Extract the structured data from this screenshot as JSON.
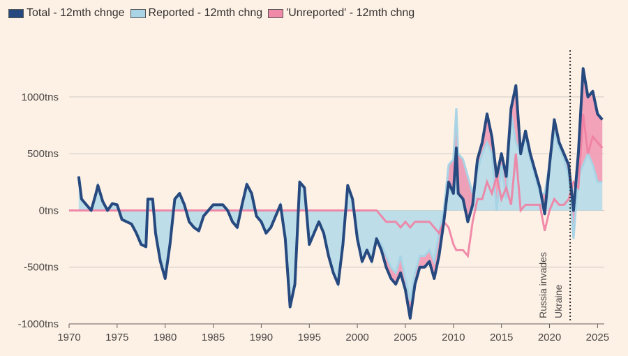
{
  "legend": [
    {
      "label": "Total - 12mth chnge",
      "color": "#26497f"
    },
    {
      "label": "Reported - 12mth chng",
      "color": "#a8d4e6"
    },
    {
      "label": "'Unreported' - 12mth chng",
      "color": "#f08aa8"
    }
  ],
  "chart_data": {
    "type": "area",
    "title": "",
    "xlabel": "",
    "ylabel": "",
    "xlim": [
      1970,
      2025.7
    ],
    "ylim": [
      -1000,
      1350
    ],
    "yticks": [
      -1000,
      -500,
      0,
      500,
      1000
    ],
    "ytick_labels": [
      "-1000tns",
      "-500tns",
      "0tns",
      "500tns",
      "1000tns"
    ],
    "xticks": [
      1970,
      1975,
      1980,
      1985,
      1990,
      1995,
      2000,
      2005,
      2010,
      2015,
      2020,
      2025
    ],
    "xtick_labels": [
      "1970",
      "1975",
      "1980",
      "1985",
      "1990",
      "1995",
      "2000",
      "2005",
      "2010",
      "2015",
      "2020",
      "2025"
    ],
    "grid": "horizontal",
    "legend_position": "top-left",
    "annotation": {
      "label": "Russia invades Ukraine",
      "lines": [
        "Russia invades",
        "Ukraine"
      ],
      "x": 2022.15
    },
    "x": [
      1971,
      1971.3,
      1971.8,
      1972.3,
      1972.8,
      1973,
      1973.5,
      1974,
      1974.5,
      1975,
      1975.5,
      1976,
      1976.5,
      1977,
      1977.5,
      1978,
      1978.2,
      1978.7,
      1979,
      1979.5,
      1980,
      1980.5,
      1981,
      1981.5,
      1982,
      1982.5,
      1983,
      1983.5,
      1984,
      1985,
      1986,
      1986.5,
      1987,
      1987.5,
      1988,
      1988.5,
      1989,
      1989.5,
      1990,
      1990.5,
      1991,
      1991.5,
      1992,
      1992.5,
      1993,
      1993.5,
      1994,
      1994.5,
      1995,
      1995.5,
      1996,
      1996.5,
      1997,
      1997.5,
      1998,
      1998.5,
      1999,
      1999.5,
      2000,
      2000.5,
      2001,
      2001.5,
      2002,
      2002.5,
      2003,
      2003.5,
      2004,
      2004.5,
      2005,
      2005.5,
      2006,
      2006.5,
      2007,
      2007.5,
      2008,
      2008.5,
      2009,
      2009.5,
      2010,
      2010.3,
      2010.5,
      2011,
      2011.5,
      2012,
      2012.5,
      2013,
      2013.5,
      2014,
      2014.5,
      2015,
      2015.5,
      2016,
      2016.5,
      2017,
      2017.5,
      2018,
      2018.5,
      2019,
      2019.5,
      2020,
      2020.5,
      2021,
      2021.5,
      2022,
      2022.5,
      2023,
      2023.5,
      2024,
      2024.5,
      2025,
      2025.5
    ],
    "series": [
      {
        "name": "Total - 12mth chnge",
        "values": [
          300,
          100,
          50,
          0,
          150,
          220,
          80,
          0,
          60,
          50,
          -80,
          -100,
          -120,
          -200,
          -300,
          -320,
          100,
          100,
          -200,
          -450,
          -600,
          -300,
          100,
          150,
          50,
          -100,
          -150,
          -180,
          -50,
          50,
          50,
          0,
          -100,
          -150,
          50,
          230,
          150,
          -50,
          -100,
          -200,
          -150,
          -50,
          50,
          -250,
          -850,
          -650,
          250,
          200,
          -300,
          -200,
          -100,
          -200,
          -400,
          -550,
          -650,
          -300,
          220,
          100,
          -250,
          -450,
          -350,
          -450,
          -250,
          -350,
          -500,
          -600,
          -650,
          -550,
          -700,
          -950,
          -650,
          -500,
          -500,
          -450,
          -600,
          -400,
          -100,
          250,
          150,
          550,
          150,
          100,
          -100,
          50,
          450,
          600,
          850,
          650,
          300,
          500,
          300,
          900,
          1100,
          500,
          700,
          500,
          350,
          200,
          -30,
          400,
          800,
          600,
          500,
          400,
          0,
          500,
          1250,
          1000,
          1050,
          850,
          800
        ]
      },
      {
        "name": "Reported - 12mth chng",
        "values": [
          300,
          100,
          50,
          0,
          150,
          220,
          80,
          0,
          60,
          50,
          -80,
          -100,
          -120,
          -200,
          -300,
          -320,
          100,
          100,
          -200,
          -450,
          -600,
          -300,
          100,
          150,
          50,
          -100,
          -150,
          -180,
          -50,
          50,
          50,
          0,
          -100,
          -150,
          50,
          230,
          150,
          -50,
          -100,
          -200,
          -150,
          -50,
          50,
          -250,
          -850,
          -650,
          250,
          200,
          -300,
          -200,
          -100,
          -200,
          -400,
          -550,
          -650,
          -300,
          220,
          100,
          -250,
          -450,
          -350,
          -450,
          -250,
          -300,
          -400,
          -500,
          -550,
          -400,
          -600,
          -800,
          -550,
          -400,
          -400,
          -350,
          -450,
          -200,
          0,
          400,
          450,
          900,
          500,
          450,
          300,
          150,
          350,
          500,
          600,
          500,
          0,
          400,
          100,
          850,
          600,
          500,
          650,
          450,
          300,
          150,
          150,
          400,
          700,
          550,
          450,
          300,
          -250,
          300,
          400,
          500,
          400,
          250,
          250
        ]
      }
    ]
  }
}
